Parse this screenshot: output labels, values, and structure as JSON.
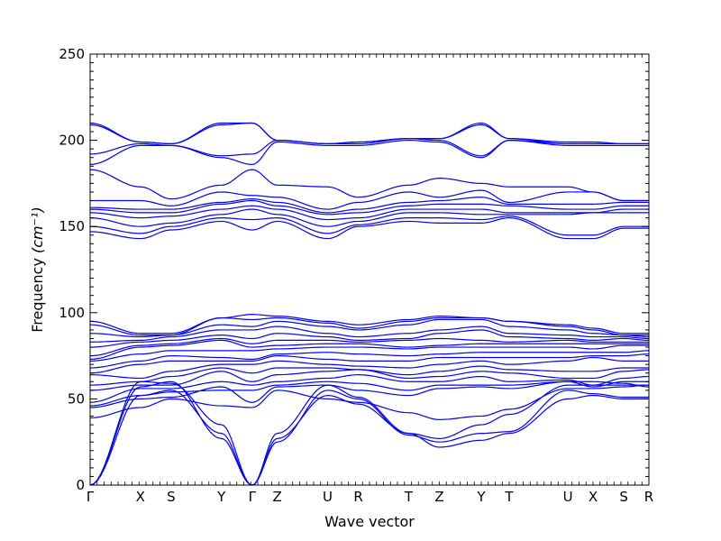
{
  "chart_data": {
    "type": "line",
    "title": "",
    "xlabel": "Wave vector",
    "ylabel": "Frequency",
    "ylabel_unit": "(cm⁻¹)",
    "ylim": [
      0,
      250
    ],
    "yticks": [
      0,
      50,
      100,
      150,
      200,
      250
    ],
    "grid": false,
    "line_color": "#0000ff",
    "high_symmetry_points": [
      {
        "label": "Γ",
        "x": 0
      },
      {
        "label": "X",
        "x": 0.9
      },
      {
        "label": "S",
        "x": 1.45
      },
      {
        "label": "Y",
        "x": 2.35
      },
      {
        "label": "Γ",
        "x": 2.9
      },
      {
        "label": "Z",
        "x": 3.35
      },
      {
        "label": "U",
        "x": 4.25
      },
      {
        "label": "R",
        "x": 4.8
      },
      {
        "label": "T",
        "x": 5.7
      },
      {
        "label": "Z",
        "x": 6.25
      },
      {
        "label": "Y",
        "x": 7.0
      },
      {
        "label": "T",
        "x": 7.5
      },
      {
        "label": "U",
        "x": 8.55
      },
      {
        "label": "X",
        "x": 9.0
      },
      {
        "label": "S",
        "x": 9.55
      },
      {
        "label": "R",
        "x": 10.0
      }
    ],
    "series": [
      {
        "values": [
          0,
          52,
          55,
          30,
          0,
          27,
          52,
          47,
          30,
          22,
          26,
          30,
          50,
          52,
          50,
          50
        ]
      },
      {
        "values": [
          0,
          57,
          60,
          27,
          0,
          25,
          55,
          50,
          29,
          25,
          30,
          31,
          55,
          53,
          51,
          51
        ]
      },
      {
        "values": [
          0,
          60,
          59,
          35,
          0,
          30,
          58,
          51,
          30,
          27,
          35,
          41,
          58,
          58,
          58,
          58
        ]
      },
      {
        "values": [
          39,
          45,
          50,
          46,
          45,
          55,
          50,
          48,
          42,
          38,
          40,
          44,
          56,
          56,
          57,
          58
        ]
      },
      {
        "values": [
          45,
          50,
          51,
          57,
          48,
          57,
          58,
          55,
          52,
          56,
          57,
          56,
          60,
          60,
          59,
          57
        ]
      },
      {
        "values": [
          46,
          52,
          54,
          55,
          55,
          58,
          60,
          59,
          55,
          58,
          58,
          58,
          60,
          57,
          60,
          60
        ]
      },
      {
        "values": [
          48,
          56,
          56,
          60,
          58,
          60,
          62,
          64,
          60,
          60,
          63,
          60,
          61,
          58,
          62,
          63
        ]
      },
      {
        "values": [
          55,
          58,
          58,
          66,
          60,
          64,
          66,
          67,
          62,
          63,
          66,
          65,
          62,
          62,
          66,
          67
        ]
      },
      {
        "values": [
          58,
          60,
          63,
          68,
          65,
          68,
          68,
          67,
          64,
          66,
          69,
          67,
          66,
          66,
          68,
          68
        ]
      },
      {
        "values": [
          64,
          62,
          66,
          70,
          70,
          72,
          70,
          69,
          68,
          70,
          72,
          70,
          72,
          74,
          72,
          72
        ]
      },
      {
        "values": [
          65,
          70,
          72,
          72,
          72,
          75,
          73,
          72,
          72,
          74,
          74,
          74,
          74,
          75,
          75,
          76
        ]
      },
      {
        "values": [
          68,
          72,
          75,
          74,
          73,
          76,
          77,
          76,
          75,
          76,
          77,
          77,
          77,
          77,
          77,
          78
        ]
      },
      {
        "values": [
          72,
          76,
          78,
          78,
          78,
          79,
          80,
          80,
          79,
          80,
          80,
          80,
          80,
          79,
          81,
          81
        ]
      },
      {
        "values": [
          73,
          80,
          81,
          84,
          80,
          81,
          82,
          82,
          80,
          81,
          82,
          82,
          82,
          82,
          82,
          82
        ]
      },
      {
        "values": [
          75,
          81,
          82,
          85,
          82,
          84,
          84,
          83,
          84,
          85,
          84,
          83,
          84,
          83,
          83,
          83
        ]
      },
      {
        "values": [
          80,
          83,
          84,
          87,
          85,
          88,
          86,
          84,
          85,
          88,
          90,
          86,
          85,
          84,
          85,
          84
        ]
      },
      {
        "values": [
          83,
          84,
          86,
          90,
          90,
          92,
          88,
          86,
          88,
          90,
          92,
          88,
          87,
          86,
          86,
          85
        ]
      },
      {
        "values": [
          88,
          86,
          87,
          93,
          92,
          95,
          92,
          90,
          93,
          96,
          96,
          92,
          90,
          88,
          87,
          86
        ]
      },
      {
        "values": [
          93,
          87,
          87,
          97,
          96,
          97,
          94,
          91,
          95,
          97,
          97,
          95,
          92,
          90,
          87,
          87
        ]
      },
      {
        "values": [
          95,
          88,
          88,
          97,
          99,
          98,
          95,
          93,
          96,
          98,
          97,
          95,
          93,
          91,
          88,
          88
        ]
      },
      {
        "values": [
          147,
          143,
          148,
          153,
          148,
          153,
          143,
          150,
          153,
          152,
          152,
          155,
          143,
          143,
          149,
          149
        ]
      },
      {
        "values": [
          150,
          146,
          150,
          155,
          154,
          155,
          146,
          151,
          155,
          155,
          154,
          156,
          145,
          145,
          150,
          150
        ]
      },
      {
        "values": [
          155,
          150,
          152,
          157,
          160,
          157,
          150,
          153,
          158,
          158,
          157,
          157,
          157,
          158,
          158,
          158
        ]
      },
      {
        "values": [
          158,
          155,
          156,
          160,
          162,
          160,
          154,
          155,
          160,
          160,
          160,
          158,
          158,
          158,
          160,
          160
        ]
      },
      {
        "values": [
          160,
          158,
          158,
          163,
          165,
          162,
          157,
          158,
          162,
          163,
          163,
          162,
          160,
          160,
          162,
          162
        ]
      },
      {
        "values": [
          161,
          160,
          160,
          164,
          166,
          164,
          158,
          160,
          164,
          165,
          167,
          163,
          163,
          163,
          164,
          164
        ]
      },
      {
        "values": [
          165,
          165,
          162,
          170,
          168,
          167,
          160,
          164,
          170,
          167,
          171,
          164,
          170,
          170,
          165,
          165
        ]
      },
      {
        "values": [
          183,
          173,
          166,
          174,
          183,
          174,
          173,
          167,
          174,
          178,
          175,
          173,
          173,
          170,
          165,
          165
        ]
      },
      {
        "values": [
          186,
          197,
          197,
          190,
          186,
          199,
          197,
          197,
          200,
          199,
          190,
          200,
          197,
          197,
          197,
          197
        ]
      },
      {
        "values": [
          192,
          198,
          197,
          191,
          192,
          200,
          198,
          198,
          201,
          200,
          191,
          200,
          198,
          198,
          198,
          198
        ]
      },
      {
        "values": [
          209,
          199,
          198,
          209,
          210,
          200,
          198,
          199,
          201,
          201,
          209,
          201,
          198,
          198,
          198,
          198
        ]
      },
      {
        "values": [
          210,
          199,
          198,
          210,
          210,
          200,
          198,
          199,
          201,
          201,
          210,
          201,
          199,
          199,
          198,
          198
        ]
      }
    ]
  }
}
